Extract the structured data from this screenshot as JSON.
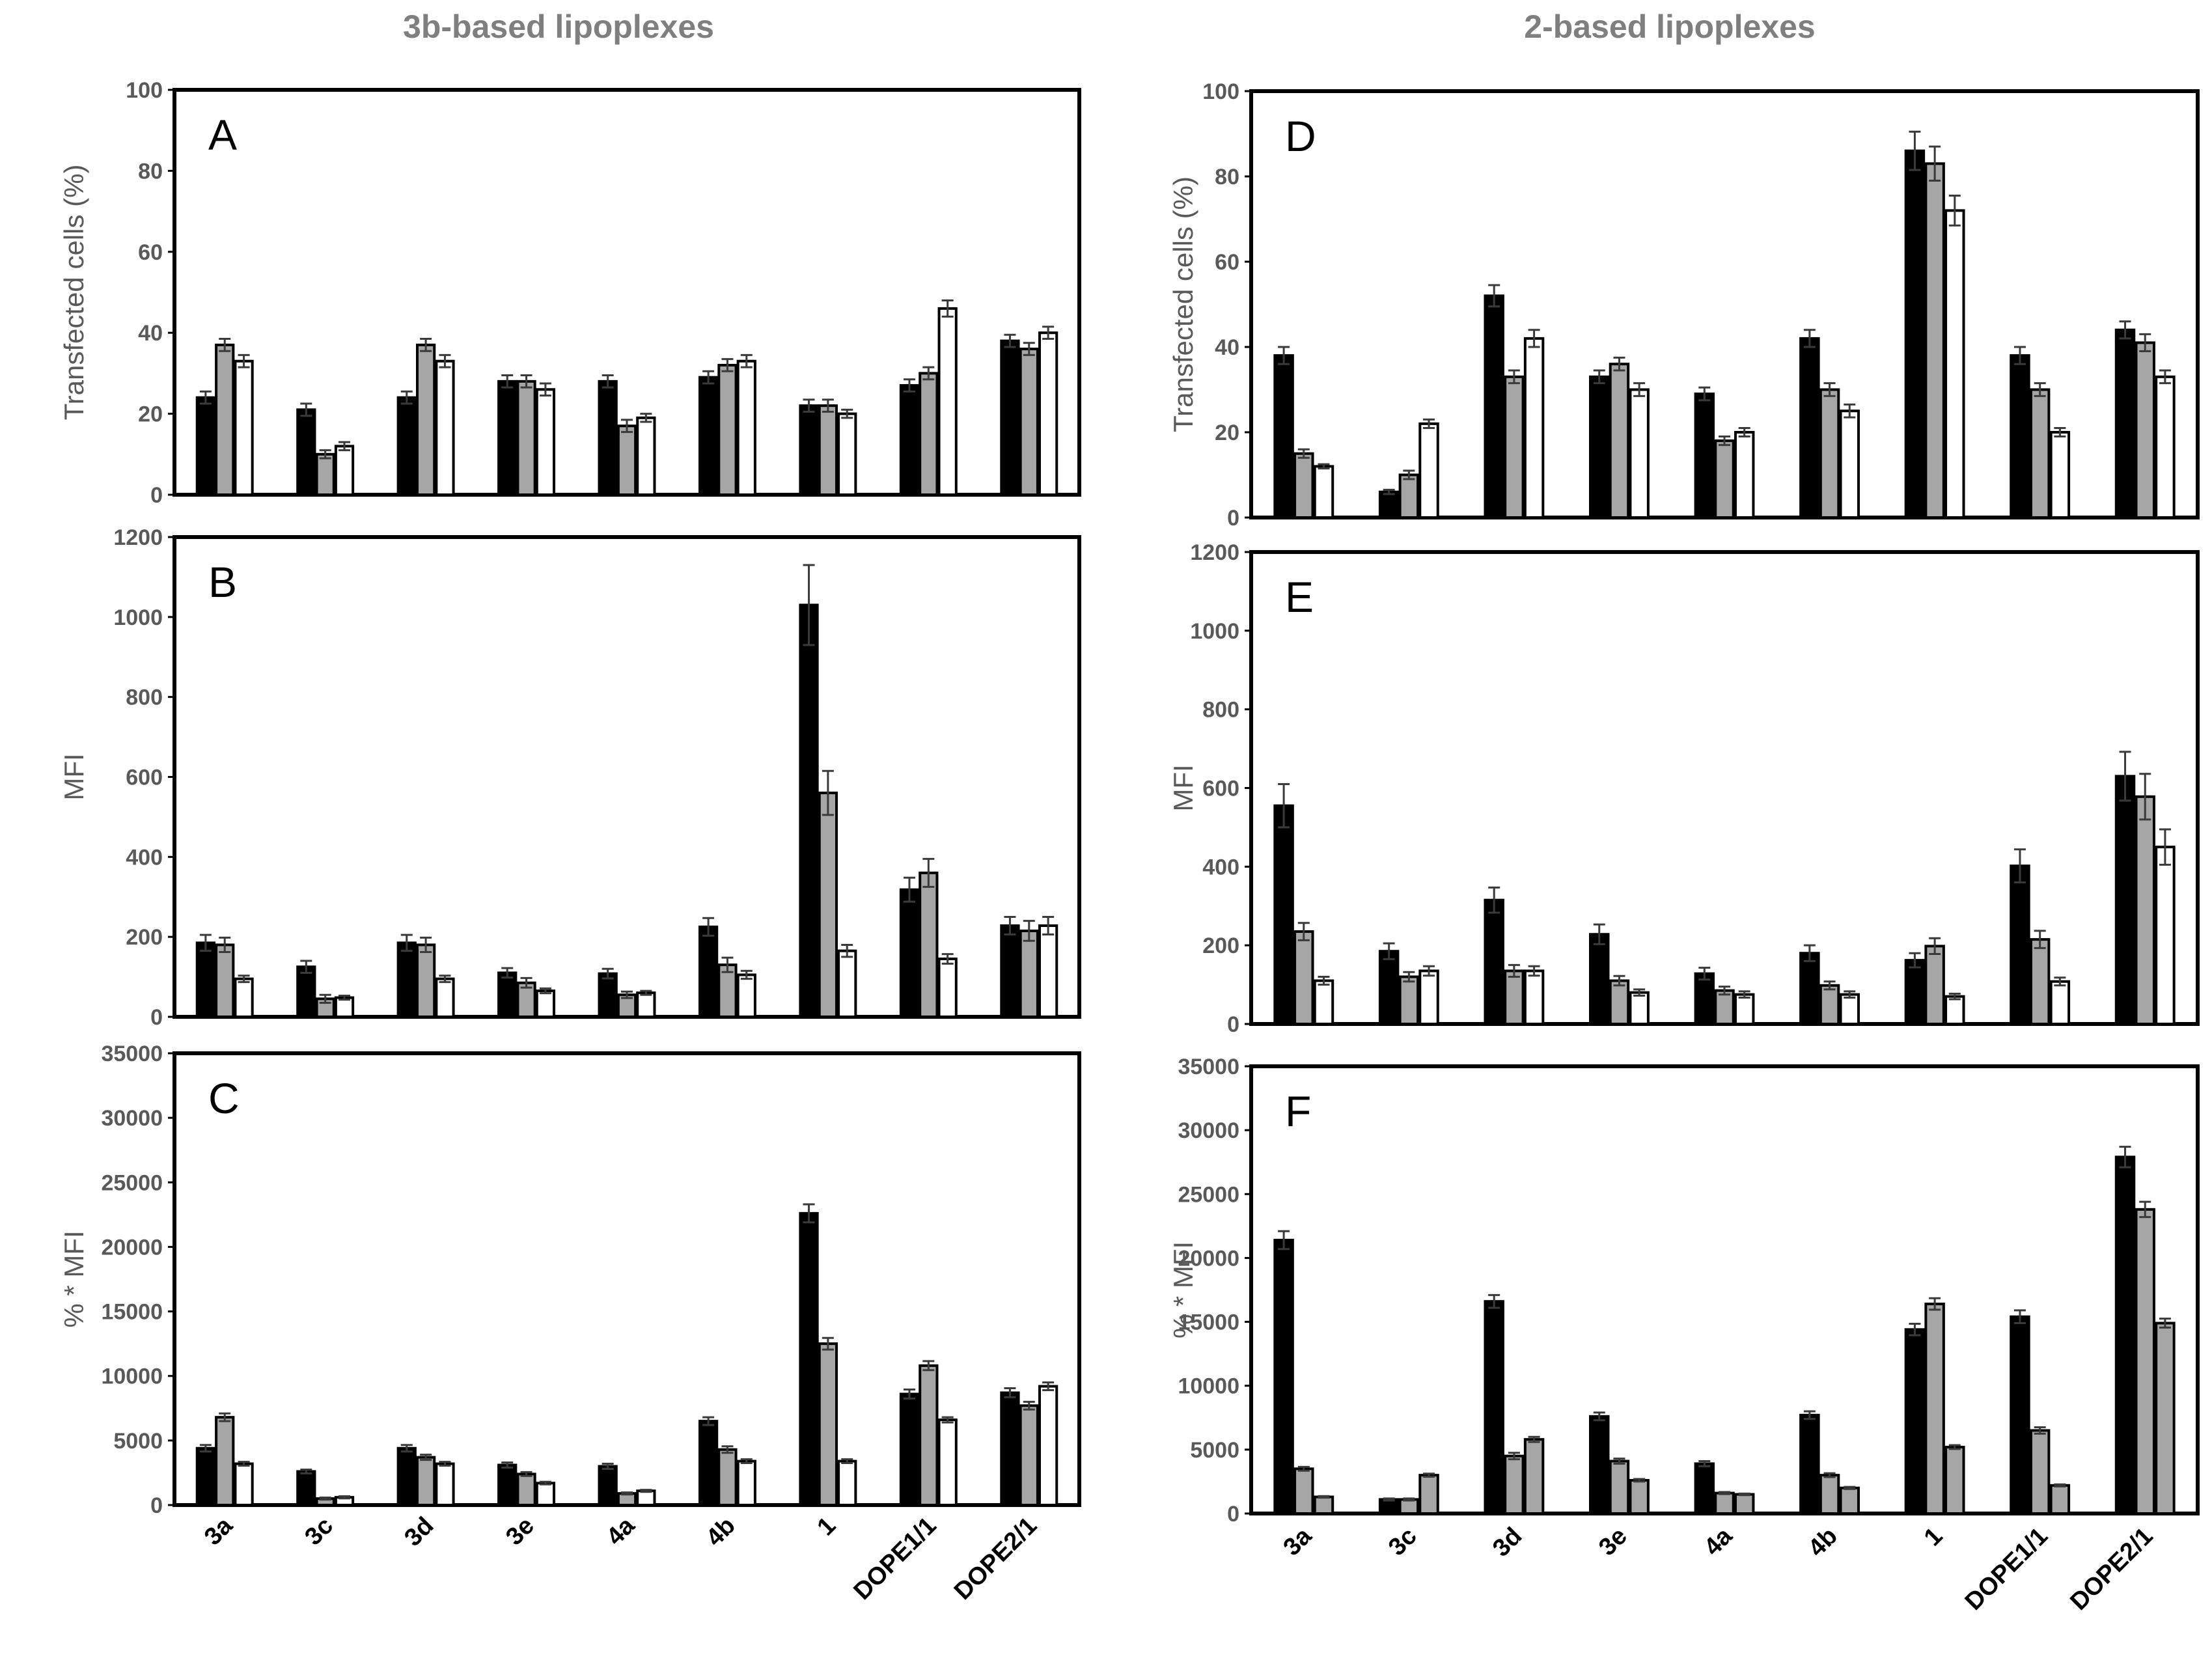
{
  "titles": {
    "left": "3b-based lipoplexes",
    "right": "2-based lipoplexes"
  },
  "categories": [
    "3a",
    "3c",
    "3d",
    "3e",
    "4a",
    "4b",
    "1",
    "DOPE1/1",
    "DOPE2/1"
  ],
  "colors": {
    "black": "#000000",
    "gray": "#a6a6a6",
    "white": "#ffffff",
    "axis": "#000000"
  },
  "chart_data": [
    {
      "id": "A",
      "type": "bar",
      "panel_label": "A",
      "column": "left",
      "row": 0,
      "ylabel": "Transfected cells (%)",
      "ylim": [
        0,
        100
      ],
      "yticks": [
        0,
        20,
        40,
        60,
        80,
        100
      ],
      "ytick_labels": [
        "0",
        "20",
        "40",
        "60",
        "80",
        "100"
      ],
      "categories": [
        "3a",
        "3c",
        "3d",
        "3e",
        "4a",
        "4b",
        "1",
        "DOPE1/1",
        "DOPE2/1"
      ],
      "series": [
        {
          "name": "black",
          "color": "black",
          "values": [
            24,
            21,
            24,
            28,
            28,
            29,
            22,
            27,
            38
          ],
          "errors": [
            1.5,
            1.5,
            1.5,
            1.5,
            1.5,
            1.5,
            1.5,
            1.5,
            1.5
          ]
        },
        {
          "name": "gray",
          "color": "gray",
          "values": [
            37,
            10,
            37,
            28,
            17,
            32,
            22,
            30,
            36
          ],
          "errors": [
            1.5,
            1,
            1.5,
            1.5,
            1.5,
            1.5,
            1.5,
            1.5,
            1.5
          ]
        },
        {
          "name": "white",
          "color": "white",
          "values": [
            33,
            12,
            33,
            26,
            19,
            33,
            20,
            46,
            40
          ],
          "errors": [
            1.5,
            1,
            1.5,
            1.5,
            1,
            1.5,
            1,
            2,
            1.5
          ]
        }
      ]
    },
    {
      "id": "B",
      "type": "bar",
      "panel_label": "B",
      "column": "left",
      "row": 1,
      "ylabel": "MFI",
      "ylim": [
        0,
        1200
      ],
      "yticks": [
        0,
        200,
        400,
        600,
        800,
        1000,
        1200
      ],
      "ytick_labels": [
        "0",
        "200",
        "400",
        "600",
        "800",
        "1000",
        "1200"
      ],
      "categories": [
        "3a",
        "3c",
        "3d",
        "3e",
        "4a",
        "4b",
        "1",
        "DOPE1/1",
        "DOPE2/1"
      ],
      "series": [
        {
          "name": "black",
          "color": "black",
          "values": [
            185,
            125,
            185,
            110,
            108,
            225,
            1030,
            318,
            228
          ],
          "errors": [
            20,
            15,
            20,
            12,
            12,
            22,
            100,
            30,
            22
          ]
        },
        {
          "name": "gray",
          "color": "gray",
          "values": [
            180,
            45,
            180,
            85,
            55,
            130,
            560,
            360,
            215
          ],
          "errors": [
            18,
            10,
            18,
            12,
            8,
            18,
            55,
            35,
            25
          ]
        },
        {
          "name": "white",
          "color": "white",
          "values": [
            95,
            48,
            95,
            65,
            60,
            105,
            165,
            145,
            228
          ],
          "errors": [
            8,
            5,
            8,
            6,
            5,
            10,
            15,
            12,
            22
          ]
        }
      ]
    },
    {
      "id": "C",
      "type": "bar",
      "panel_label": "C",
      "column": "left",
      "row": 2,
      "ylabel": "% * MFI",
      "ylim": [
        0,
        35000
      ],
      "yticks": [
        0,
        5000,
        10000,
        15000,
        20000,
        25000,
        30000,
        35000
      ],
      "ytick_labels": [
        "0",
        "5000",
        "10000",
        "15000",
        "20000",
        "25000",
        "30000",
        "35000"
      ],
      "categories": [
        "3a",
        "3c",
        "3d",
        "3e",
        "4a",
        "4b",
        "1",
        "DOPE1/1",
        "DOPE2/1"
      ],
      "series": [
        {
          "name": "black",
          "color": "black",
          "values": [
            4400,
            2600,
            4400,
            3100,
            3000,
            6500,
            22600,
            8600,
            8700
          ],
          "errors": [
            250,
            150,
            250,
            200,
            200,
            300,
            700,
            350,
            350
          ]
        },
        {
          "name": "gray",
          "color": "gray",
          "values": [
            6800,
            500,
            3700,
            2400,
            900,
            4300,
            12500,
            10800,
            7700
          ],
          "errors": [
            300,
            80,
            200,
            150,
            80,
            250,
            450,
            350,
            300
          ]
        },
        {
          "name": "white",
          "color": "white",
          "values": [
            3200,
            600,
            3200,
            1700,
            1100,
            3400,
            3400,
            6600,
            9200
          ],
          "errors": [
            150,
            80,
            150,
            100,
            80,
            150,
            150,
            200,
            300
          ]
        }
      ]
    },
    {
      "id": "D",
      "type": "bar",
      "panel_label": "D",
      "column": "right",
      "row": 0,
      "ylabel": "Transfected cells (%)",
      "ylim": [
        0,
        100
      ],
      "yticks": [
        0,
        20,
        40,
        60,
        80,
        100
      ],
      "ytick_labels": [
        "0",
        "20",
        "40",
        "60",
        "80",
        "100"
      ],
      "categories": [
        "3a",
        "3c",
        "3d",
        "3e",
        "4a",
        "4b",
        "1",
        "DOPE1/1",
        "DOPE2/1"
      ],
      "series": [
        {
          "name": "black",
          "color": "black",
          "values": [
            38,
            6,
            52,
            33,
            29,
            42,
            86,
            38,
            44
          ],
          "errors": [
            2,
            0.5,
            2.5,
            1.5,
            1.5,
            2,
            4.5,
            2,
            2
          ]
        },
        {
          "name": "gray",
          "color": "gray",
          "values": [
            15,
            10,
            33,
            36,
            18,
            30,
            83,
            30,
            41
          ],
          "errors": [
            1,
            1,
            1.5,
            1.5,
            1,
            1.5,
            4,
            1.5,
            2
          ]
        },
        {
          "name": "white",
          "color": "white",
          "values": [
            12,
            22,
            42,
            30,
            20,
            25,
            72,
            20,
            33
          ],
          "errors": [
            0.5,
            1,
            2,
            1.5,
            1,
            1.5,
            3.5,
            1,
            1.5
          ]
        }
      ]
    },
    {
      "id": "E",
      "type": "bar",
      "panel_label": "E",
      "column": "right",
      "row": 1,
      "ylabel": "MFI",
      "ylim": [
        0,
        1200
      ],
      "yticks": [
        0,
        200,
        400,
        600,
        800,
        1000,
        1200
      ],
      "ytick_labels": [
        "0",
        "200",
        "400",
        "600",
        "800",
        "1000",
        "1200"
      ],
      "categories": [
        "3a",
        "3c",
        "3d",
        "3e",
        "4a",
        "4b",
        "1",
        "DOPE1/1",
        "DOPE2/1"
      ],
      "series": [
        {
          "name": "black",
          "color": "black",
          "values": [
            555,
            185,
            315,
            228,
            128,
            180,
            162,
            402,
            630
          ],
          "errors": [
            55,
            20,
            32,
            25,
            15,
            20,
            18,
            42,
            62
          ]
        },
        {
          "name": "gray",
          "color": "gray",
          "values": [
            235,
            120,
            135,
            110,
            85,
            98,
            198,
            215,
            578
          ],
          "errors": [
            22,
            12,
            15,
            12,
            10,
            10,
            20,
            22,
            58
          ]
        },
        {
          "name": "white",
          "color": "white",
          "values": [
            110,
            135,
            135,
            80,
            75,
            75,
            70,
            108,
            450
          ],
          "errors": [
            10,
            12,
            12,
            8,
            8,
            8,
            7,
            10,
            45
          ]
        }
      ]
    },
    {
      "id": "F",
      "type": "bar",
      "panel_label": "F",
      "column": "right",
      "row": 2,
      "ylabel": "% * MFI",
      "ylim": [
        0,
        35000
      ],
      "yticks": [
        0,
        5000,
        10000,
        15000,
        20000,
        25000,
        30000,
        35000
      ],
      "ytick_labels": [
        "0",
        "5000",
        "10000",
        "15000",
        "20000",
        "25000",
        "30000",
        "35000"
      ],
      "categories": [
        "3a",
        "3c",
        "3d",
        "3e",
        "4a",
        "4b",
        "1",
        "DOPE1/1",
        "DOPE2/1"
      ],
      "series": [
        {
          "name": "black",
          "color": "black",
          "values": [
            21400,
            1100,
            16600,
            7600,
            3900,
            7700,
            14400,
            15400,
            27900
          ],
          "errors": [
            700,
            80,
            500,
            300,
            200,
            300,
            450,
            500,
            800
          ]
        },
        {
          "name": "gray",
          "color": "gray",
          "values": [
            3500,
            1100,
            4500,
            4100,
            1600,
            3000,
            16400,
            6500,
            23800
          ],
          "errors": [
            150,
            80,
            250,
            200,
            80,
            150,
            450,
            250,
            600
          ]
        },
        {
          "name": "white",
          "color": "gray",
          "values": [
            1300,
            3000,
            5800,
            2600,
            1500,
            2000,
            5200,
            2200,
            14900
          ],
          "errors": [
            60,
            120,
            200,
            100,
            60,
            80,
            150,
            80,
            350
          ]
        }
      ]
    }
  ]
}
